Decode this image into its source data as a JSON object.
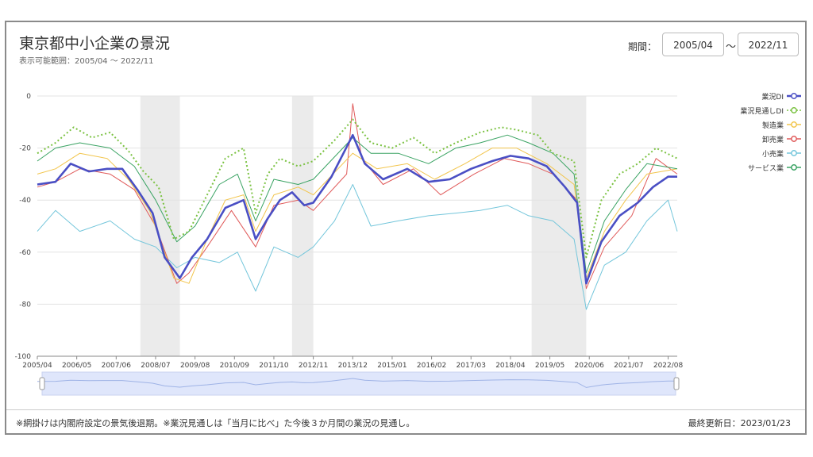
{
  "header": {
    "title": "東京都中小企業の景況",
    "subtitle": "表示可能範囲：2005/04 ～ 2022/11",
    "period_label": "期間：",
    "period_from": "2005/04",
    "period_sep": "～",
    "period_to": "2022/11"
  },
  "footer": {
    "note": "※網掛けは内閣府設定の景気後退期。※業況見通しは「当月に比べ」た今後３か月間の業況の見通し。",
    "updated": "最終更新日：2023/01/23"
  },
  "chart_data": {
    "type": "line",
    "ylim": [
      -100,
      0
    ],
    "yticks": [
      "0",
      "-20",
      "-40",
      "-60",
      "-80",
      "-100"
    ],
    "xticks": [
      "2005/04",
      "2006/05",
      "2007/06",
      "2008/07",
      "2009/08",
      "2010/09",
      "2011/10",
      "2012/11",
      "2013/12",
      "2015/01",
      "2016/02",
      "2017/03",
      "2018/04",
      "2019/05",
      "2020/06",
      "2021/07",
      "2022/08"
    ],
    "recession_periods": [
      [
        "2008/02",
        "2009/03"
      ],
      [
        "2012/04",
        "2012/11"
      ],
      [
        "2018/11",
        "2020/05"
      ]
    ],
    "legend_position": "right",
    "series": [
      {
        "name": "業況DI",
        "color": "#4a4fc4",
        "style": "bold",
        "points": [
          [
            "2005/04",
            -34
          ],
          [
            "2005/10",
            -33
          ],
          [
            "2006/03",
            -26
          ],
          [
            "2006/09",
            -29
          ],
          [
            "2007/03",
            -28
          ],
          [
            "2007/08",
            -28
          ],
          [
            "2008/01",
            -36
          ],
          [
            "2008/06",
            -45
          ],
          [
            "2008/10",
            -62
          ],
          [
            "2009/03",
            -70
          ],
          [
            "2009/07",
            -62
          ],
          [
            "2009/12",
            -55
          ],
          [
            "2010/06",
            -43
          ],
          [
            "2010/12",
            -40
          ],
          [
            "2011/04",
            -55
          ],
          [
            "2011/08",
            -47
          ],
          [
            "2011/12",
            -40
          ],
          [
            "2012/04",
            -37
          ],
          [
            "2012/08",
            -42
          ],
          [
            "2012/11",
            -41
          ],
          [
            "2013/05",
            -31
          ],
          [
            "2013/12",
            -15
          ],
          [
            "2014/04",
            -26
          ],
          [
            "2014/10",
            -32
          ],
          [
            "2015/06",
            -28
          ],
          [
            "2016/01",
            -33
          ],
          [
            "2016/08",
            -32
          ],
          [
            "2017/03",
            -28
          ],
          [
            "2017/10",
            -25
          ],
          [
            "2018/04",
            -23
          ],
          [
            "2018/10",
            -24
          ],
          [
            "2019/04",
            -27
          ],
          [
            "2019/10",
            -35
          ],
          [
            "2020/02",
            -41
          ],
          [
            "2020/05",
            -72
          ],
          [
            "2020/10",
            -56
          ],
          [
            "2021/04",
            -46
          ],
          [
            "2021/10",
            -41
          ],
          [
            "2022/03",
            -35
          ],
          [
            "2022/08",
            -31
          ],
          [
            "2022/11",
            -31
          ]
        ]
      },
      {
        "name": "業況見通しDI",
        "color": "#7bc242",
        "style": "dotted",
        "points": [
          [
            "2005/04",
            -22
          ],
          [
            "2005/10",
            -18
          ],
          [
            "2006/04",
            -12
          ],
          [
            "2006/10",
            -16
          ],
          [
            "2007/04",
            -14
          ],
          [
            "2007/10",
            -21
          ],
          [
            "2008/03",
            -29
          ],
          [
            "2008/08",
            -35
          ],
          [
            "2009/01",
            -55
          ],
          [
            "2009/06",
            -52
          ],
          [
            "2009/12",
            -38
          ],
          [
            "2010/06",
            -24
          ],
          [
            "2010/12",
            -20
          ],
          [
            "2011/04",
            -45
          ],
          [
            "2011/08",
            -30
          ],
          [
            "2011/12",
            -24
          ],
          [
            "2012/06",
            -27
          ],
          [
            "2012/11",
            -25
          ],
          [
            "2013/06",
            -17
          ],
          [
            "2013/12",
            -9
          ],
          [
            "2014/06",
            -18
          ],
          [
            "2015/01",
            -20
          ],
          [
            "2015/08",
            -16
          ],
          [
            "2016/03",
            -22
          ],
          [
            "2016/10",
            -18
          ],
          [
            "2017/06",
            -14
          ],
          [
            "2018/01",
            -12
          ],
          [
            "2018/06",
            -13
          ],
          [
            "2019/01",
            -15
          ],
          [
            "2019/06",
            -22
          ],
          [
            "2020/01",
            -25
          ],
          [
            "2020/05",
            -62
          ],
          [
            "2020/10",
            -40
          ],
          [
            "2021/04",
            -30
          ],
          [
            "2021/10",
            -26
          ],
          [
            "2022/04",
            -20
          ],
          [
            "2022/11",
            -24
          ]
        ]
      },
      {
        "name": "製造業",
        "color": "#f2c54c",
        "style": "thin",
        "points": [
          [
            "2005/04",
            -30
          ],
          [
            "2005/10",
            -28
          ],
          [
            "2006/06",
            -22
          ],
          [
            "2007/03",
            -24
          ],
          [
            "2007/10",
            -32
          ],
          [
            "2008/05",
            -44
          ],
          [
            "2009/01",
            -70
          ],
          [
            "2009/06",
            -72
          ],
          [
            "2009/12",
            -55
          ],
          [
            "2010/06",
            -40
          ],
          [
            "2010/12",
            -38
          ],
          [
            "2011/04",
            -52
          ],
          [
            "2011/10",
            -38
          ],
          [
            "2012/06",
            -35
          ],
          [
            "2012/11",
            -38
          ],
          [
            "2013/12",
            -22
          ],
          [
            "2014/08",
            -28
          ],
          [
            "2015/06",
            -26
          ],
          [
            "2016/03",
            -32
          ],
          [
            "2017/01",
            -26
          ],
          [
            "2017/10",
            -20
          ],
          [
            "2018/06",
            -20
          ],
          [
            "2019/04",
            -26
          ],
          [
            "2020/01",
            -34
          ],
          [
            "2020/05",
            -70
          ],
          [
            "2020/11",
            -52
          ],
          [
            "2021/06",
            -40
          ],
          [
            "2022/01",
            -30
          ],
          [
            "2022/11",
            -28
          ]
        ]
      },
      {
        "name": "卸売業",
        "color": "#e05a5a",
        "style": "thin",
        "points": [
          [
            "2005/04",
            -35
          ],
          [
            "2005/10",
            -33
          ],
          [
            "2006/06",
            -28
          ],
          [
            "2007/04",
            -30
          ],
          [
            "2007/12",
            -36
          ],
          [
            "2008/07",
            -50
          ],
          [
            "2009/02",
            -72
          ],
          [
            "2009/06",
            -68
          ],
          [
            "2009/12",
            -58
          ],
          [
            "2010/08",
            -44
          ],
          [
            "2011/04",
            -58
          ],
          [
            "2011/10",
            -42
          ],
          [
            "2012/06",
            -40
          ],
          [
            "2012/11",
            -44
          ],
          [
            "2013/10",
            -30
          ],
          [
            "2013/12",
            -3
          ],
          [
            "2014/03",
            -24
          ],
          [
            "2014/10",
            -34
          ],
          [
            "2015/08",
            -28
          ],
          [
            "2016/05",
            -38
          ],
          [
            "2017/04",
            -30
          ],
          [
            "2018/02",
            -24
          ],
          [
            "2018/10",
            -26
          ],
          [
            "2019/06",
            -30
          ],
          [
            "2020/02",
            -40
          ],
          [
            "2020/05",
            -74
          ],
          [
            "2020/11",
            -58
          ],
          [
            "2021/08",
            -46
          ],
          [
            "2022/04",
            -24
          ],
          [
            "2022/11",
            -30
          ]
        ]
      },
      {
        "name": "小売業",
        "color": "#74c6db",
        "style": "thin",
        "points": [
          [
            "2005/04",
            -52
          ],
          [
            "2005/10",
            -44
          ],
          [
            "2006/06",
            -52
          ],
          [
            "2007/04",
            -48
          ],
          [
            "2007/12",
            -55
          ],
          [
            "2008/07",
            -58
          ],
          [
            "2009/02",
            -66
          ],
          [
            "2009/08",
            -62
          ],
          [
            "2010/04",
            -64
          ],
          [
            "2010/10",
            -60
          ],
          [
            "2011/04",
            -75
          ],
          [
            "2011/10",
            -58
          ],
          [
            "2012/06",
            -62
          ],
          [
            "2012/11",
            -58
          ],
          [
            "2013/06",
            -48
          ],
          [
            "2013/12",
            -34
          ],
          [
            "2014/06",
            -50
          ],
          [
            "2015/03",
            -48
          ],
          [
            "2016/01",
            -46
          ],
          [
            "2016/10",
            -45
          ],
          [
            "2017/06",
            -44
          ],
          [
            "2018/03",
            -42
          ],
          [
            "2018/10",
            -46
          ],
          [
            "2019/06",
            -48
          ],
          [
            "2020/01",
            -55
          ],
          [
            "2020/05",
            -82
          ],
          [
            "2020/11",
            -65
          ],
          [
            "2021/06",
            -60
          ],
          [
            "2022/01",
            -48
          ],
          [
            "2022/08",
            -40
          ],
          [
            "2022/11",
            -52
          ]
        ]
      },
      {
        "name": "サービス業",
        "color": "#3aa363",
        "style": "thin",
        "points": [
          [
            "2005/04",
            -25
          ],
          [
            "2005/10",
            -20
          ],
          [
            "2006/06",
            -18
          ],
          [
            "2007/04",
            -20
          ],
          [
            "2007/12",
            -27
          ],
          [
            "2008/07",
            -40
          ],
          [
            "2009/02",
            -56
          ],
          [
            "2009/08",
            -50
          ],
          [
            "2010/04",
            -34
          ],
          [
            "2010/10",
            -30
          ],
          [
            "2011/04",
            -48
          ],
          [
            "2011/10",
            -32
          ],
          [
            "2012/06",
            -34
          ],
          [
            "2012/11",
            -32
          ],
          [
            "2013/12",
            -16
          ],
          [
            "2014/06",
            -22
          ],
          [
            "2015/03",
            -22
          ],
          [
            "2016/01",
            -26
          ],
          [
            "2016/10",
            -20
          ],
          [
            "2017/06",
            -18
          ],
          [
            "2018/03",
            -15
          ],
          [
            "2018/10",
            -18
          ],
          [
            "2019/06",
            -22
          ],
          [
            "2020/01",
            -30
          ],
          [
            "2020/05",
            -68
          ],
          [
            "2020/11",
            -48
          ],
          [
            "2021/06",
            -36
          ],
          [
            "2022/01",
            -26
          ],
          [
            "2022/11",
            -28
          ]
        ]
      }
    ],
    "navigator": {
      "range_from": "2005/04",
      "range_to": "2022/11"
    }
  }
}
